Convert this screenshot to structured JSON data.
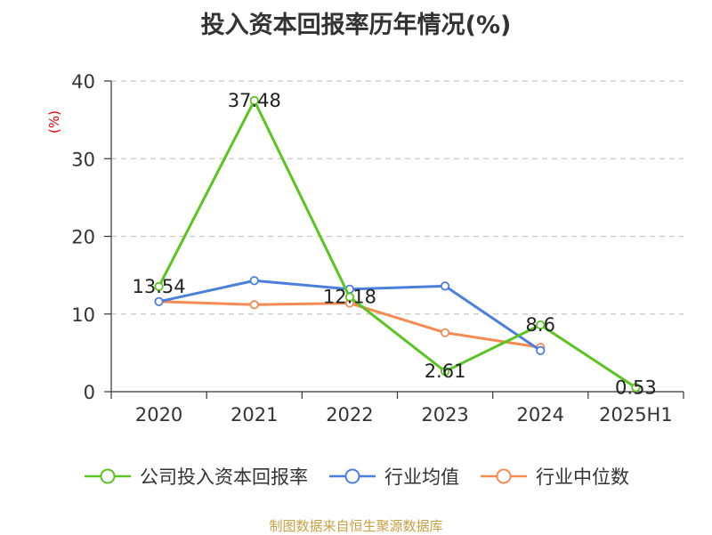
{
  "title": "投入资本回报率历年情况(%)",
  "source": "制图数据来自恒生聚源数据库",
  "chart_data": {
    "type": "line",
    "categories": [
      "2020",
      "2021",
      "2022",
      "2023",
      "2024",
      "2025H1"
    ],
    "ylabel": "(%)",
    "ylim": [
      0,
      40
    ],
    "yticks": [
      0,
      10,
      20,
      30,
      40
    ],
    "grid": true,
    "legend_position": "bottom",
    "series": [
      {
        "name": "公司投入资本回报率",
        "color": "#5ac421",
        "values": [
          13.54,
          37.48,
          12.18,
          2.61,
          8.6,
          0.53
        ],
        "labels": [
          "13.54",
          "37.48",
          "12.18",
          "2.61",
          "8.6",
          "0.53"
        ]
      },
      {
        "name": "行业均值",
        "color": "#4a7fdc",
        "values": [
          11.6,
          14.3,
          13.2,
          13.6,
          5.3,
          null
        ]
      },
      {
        "name": "行业中位数",
        "color": "#f58b52",
        "values": [
          11.6,
          11.2,
          11.4,
          7.6,
          5.7,
          null
        ]
      }
    ]
  }
}
